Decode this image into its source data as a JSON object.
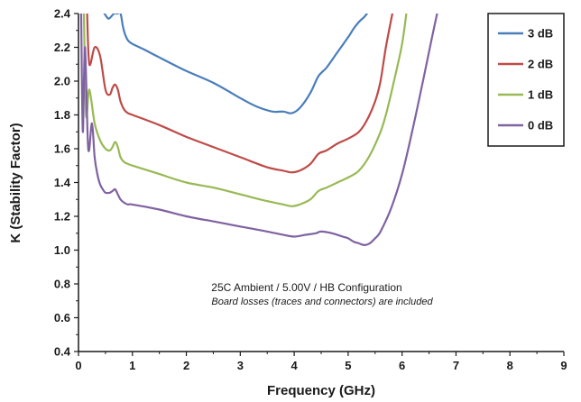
{
  "chart_data": {
    "type": "line",
    "xlabel": "Frequency (GHz)",
    "ylabel": "K (Stability Factor)",
    "xlim": [
      0,
      9
    ],
    "ylim": [
      0.4,
      2.4
    ],
    "x_ticks": [
      0,
      1,
      2,
      3,
      4,
      5,
      6,
      7,
      8,
      9
    ],
    "y_ticks": [
      0.4,
      0.6,
      0.8,
      1.0,
      1.2,
      1.4,
      1.6,
      1.8,
      2.0,
      2.2,
      2.4
    ],
    "x_tick_labels": [
      "0",
      "1",
      "2",
      "3",
      "4",
      "5",
      "6",
      "7",
      "8",
      "9"
    ],
    "y_tick_labels": [
      "0.4",
      "0.6",
      "0.8",
      "1.0",
      "1.2",
      "1.4",
      "1.6",
      "1.8",
      "2.0",
      "2.2",
      "2.4"
    ],
    "grid": false,
    "legend_position": "top-right",
    "annotations": [
      "25C Ambient / 5.00V / HB Configuration",
      "Board losses (traces and connectors) are included"
    ],
    "series": [
      {
        "name": "3 dB",
        "color": "#4a7ebb",
        "x": [
          0.48,
          0.55,
          0.6,
          0.66,
          0.72,
          0.78,
          0.82,
          0.86,
          0.92,
          1.0,
          1.2,
          1.5,
          2.0,
          2.5,
          3.0,
          3.3,
          3.6,
          3.8,
          3.95,
          4.1,
          4.3,
          4.45,
          4.6,
          4.8,
          5.0,
          5.1,
          5.2,
          5.3,
          5.35
        ],
        "y": [
          2.4,
          2.37,
          2.38,
          2.4,
          2.4,
          2.4,
          2.33,
          2.28,
          2.24,
          2.22,
          2.19,
          2.14,
          2.06,
          1.99,
          1.9,
          1.85,
          1.82,
          1.82,
          1.81,
          1.84,
          1.93,
          2.03,
          2.08,
          2.17,
          2.26,
          2.31,
          2.35,
          2.38,
          2.4
        ]
      },
      {
        "name": "2 dB",
        "color": "#be4b48",
        "x": [
          0.16,
          0.2,
          0.3,
          0.4,
          0.5,
          0.58,
          0.63,
          0.68,
          0.73,
          0.78,
          0.85,
          0.92,
          1.0,
          1.5,
          2.0,
          2.5,
          3.0,
          3.5,
          3.8,
          3.95,
          4.1,
          4.3,
          4.45,
          4.6,
          4.8,
          5.0,
          5.2,
          5.35,
          5.5,
          5.6,
          5.7,
          5.82
        ],
        "y": [
          2.4,
          2.1,
          2.2,
          2.15,
          1.95,
          1.92,
          1.96,
          1.98,
          1.95,
          1.88,
          1.83,
          1.81,
          1.8,
          1.74,
          1.67,
          1.61,
          1.55,
          1.49,
          1.47,
          1.46,
          1.47,
          1.51,
          1.57,
          1.59,
          1.63,
          1.66,
          1.7,
          1.77,
          1.88,
          2.0,
          2.2,
          2.4
        ]
      },
      {
        "name": "1 dB",
        "color": "#98b954",
        "x": [
          0.1,
          0.14,
          0.2,
          0.3,
          0.4,
          0.5,
          0.58,
          0.63,
          0.68,
          0.73,
          0.78,
          0.85,
          0.92,
          1.0,
          1.5,
          2.0,
          2.5,
          3.0,
          3.5,
          3.8,
          3.95,
          4.1,
          4.3,
          4.45,
          4.6,
          4.8,
          5.0,
          5.2,
          5.4,
          5.6,
          5.7,
          5.8,
          5.9,
          6.0,
          6.08
        ],
        "y": [
          2.4,
          1.8,
          1.95,
          1.75,
          1.65,
          1.6,
          1.59,
          1.61,
          1.64,
          1.61,
          1.55,
          1.52,
          1.51,
          1.5,
          1.45,
          1.4,
          1.37,
          1.33,
          1.29,
          1.27,
          1.26,
          1.27,
          1.3,
          1.35,
          1.37,
          1.4,
          1.43,
          1.47,
          1.56,
          1.7,
          1.8,
          1.93,
          2.07,
          2.22,
          2.4
        ]
      },
      {
        "name": "0 dB",
        "color": "#7f62a1",
        "x": [
          0.05,
          0.08,
          0.12,
          0.18,
          0.25,
          0.3,
          0.35,
          0.4,
          0.45,
          0.5,
          0.58,
          0.63,
          0.68,
          0.73,
          0.78,
          0.85,
          0.92,
          1.0,
          1.5,
          2.0,
          2.5,
          3.0,
          3.5,
          3.8,
          4.0,
          4.2,
          4.4,
          4.5,
          4.7,
          4.9,
          5.0,
          5.1,
          5.2,
          5.3,
          5.4,
          5.5,
          5.6,
          5.8,
          6.0,
          6.2,
          6.4,
          6.55,
          6.65
        ],
        "y": [
          2.4,
          1.7,
          2.2,
          1.6,
          1.75,
          1.55,
          1.45,
          1.39,
          1.36,
          1.34,
          1.34,
          1.35,
          1.36,
          1.33,
          1.3,
          1.28,
          1.27,
          1.27,
          1.24,
          1.2,
          1.17,
          1.14,
          1.11,
          1.09,
          1.08,
          1.09,
          1.1,
          1.11,
          1.1,
          1.08,
          1.07,
          1.05,
          1.04,
          1.03,
          1.04,
          1.07,
          1.11,
          1.25,
          1.45,
          1.72,
          2.02,
          2.25,
          2.4
        ]
      }
    ]
  }
}
